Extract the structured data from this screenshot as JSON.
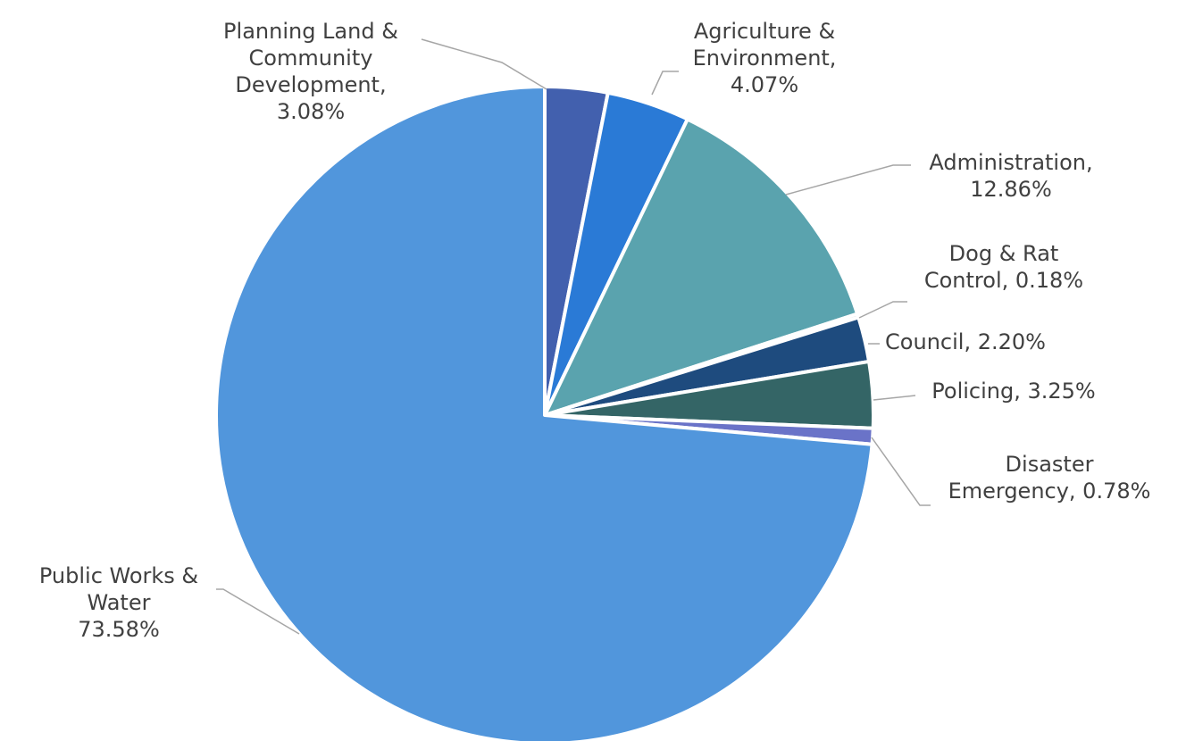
{
  "chart_data": {
    "type": "pie",
    "title": "",
    "slices": [
      {
        "name": "Planning Land & Community Development",
        "value": 3.08,
        "label": [
          "Planning Land &",
          "Community",
          "Development,",
          "3.08%"
        ],
        "color": "#4260AE"
      },
      {
        "name": "Agriculture & Environment",
        "value": 4.07,
        "label": [
          "Agriculture &",
          "Environment,",
          "4.07%"
        ],
        "color": "#2A7AD6"
      },
      {
        "name": "Administration",
        "value": 12.86,
        "label": [
          "Administration,",
          "12.86%"
        ],
        "color": "#5AA3AE"
      },
      {
        "name": "Dog & Rat Control",
        "value": 0.18,
        "label": [
          "Dog & Rat",
          "Control, 0.18%"
        ],
        "color": "#2E5A88"
      },
      {
        "name": "Council",
        "value": 2.2,
        "label": [
          "Council, 2.20%"
        ],
        "color": "#1E4B7E"
      },
      {
        "name": "Policing",
        "value": 3.25,
        "label": [
          "Policing, 3.25%"
        ],
        "color": "#346566"
      },
      {
        "name": "Disaster Emergency",
        "value": 0.78,
        "label": [
          "Disaster",
          "Emergency, 0.78%"
        ],
        "color": "#6A73C8"
      },
      {
        "name": "Public Works & Water",
        "value": 73.58,
        "label": [
          "Public Works &",
          "Water",
          "73.58%"
        ],
        "color": "#5196DC"
      }
    ],
    "start_angle_deg": 0,
    "direction": "clockwise",
    "legend": "none",
    "data_labels": "outside with leader lines"
  }
}
